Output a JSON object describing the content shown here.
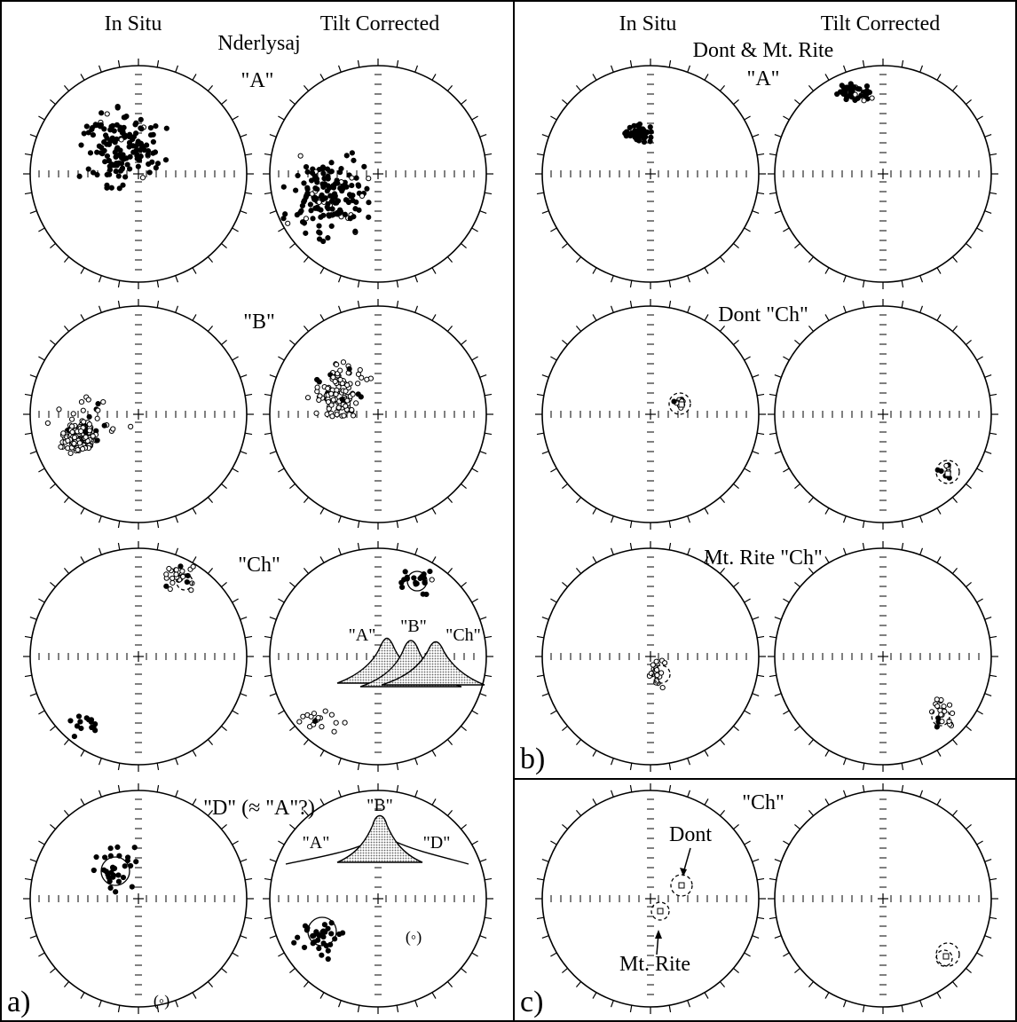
{
  "columns": {
    "in_situ": "In Situ",
    "tilt_corrected": "Tilt Corrected"
  },
  "panel_a": {
    "tag": "a)",
    "title": "Nderlysaj",
    "rows": [
      "\"A\"",
      "\"B\"",
      "\"Ch\"",
      "\"D\" (≈ \"A\"?)"
    ],
    "inset_ch": {
      "labels": [
        "\"A\"",
        "\"B\"",
        "\"Ch\""
      ]
    },
    "inset_d": {
      "labels": [
        "\"A\"",
        "\"B\"",
        "\"D\""
      ]
    },
    "d_note_insitu": "(◦)",
    "d_note_tilt": "(◦)"
  },
  "panel_b": {
    "tag": "b)",
    "rows": [
      "Dont & Mt. Rite",
      "\"A\"",
      "Dont \"Ch\"",
      "Mt. Rite \"Ch\""
    ]
  },
  "panel_c": {
    "tag": "c)",
    "title": "\"Ch\"",
    "labels": {
      "dont": "Dont",
      "mt_rite": "Mt. Rite"
    }
  },
  "symbols": {
    "filled": "lower-hemisphere direction",
    "open": "upper-hemisphere direction"
  },
  "colors": {
    "ink": "#000000",
    "fill_shade": "#bdbdbd",
    "background": "#ffffff"
  }
}
